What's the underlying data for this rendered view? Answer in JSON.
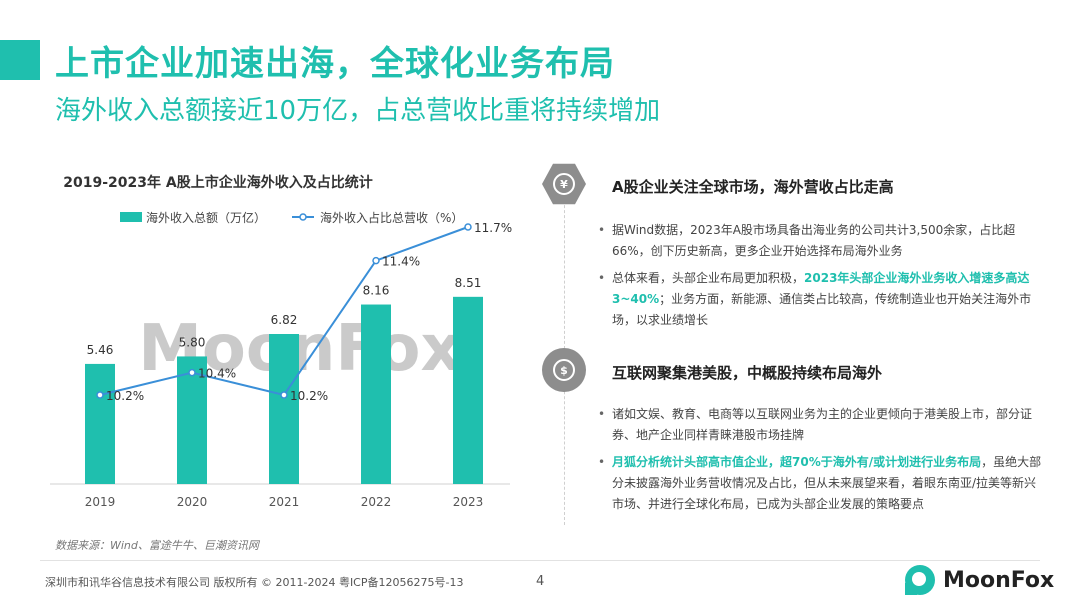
{
  "header": {
    "title": "上市企业加速出海，全球化业务布局",
    "subtitle": "海外收入总额接近10万亿，占总营收比重将持续增加"
  },
  "chart_data": {
    "type": "bar",
    "title": "2019-2023年 A股上市企业海外收入及占比统计",
    "categories": [
      "2019",
      "2020",
      "2021",
      "2022",
      "2023"
    ],
    "series": [
      {
        "name": "海外收入总额（万亿）",
        "type": "bar",
        "values": [
          5.46,
          5.8,
          6.82,
          8.16,
          8.51
        ],
        "labels": [
          "5.46",
          "5.80",
          "6.82",
          "8.16",
          "8.51"
        ]
      },
      {
        "name": "海外收入占比总营收（%）",
        "type": "line",
        "values": [
          10.2,
          10.4,
          10.2,
          11.4,
          11.7
        ],
        "labels": [
          "10.2%",
          "10.4%",
          "10.2%",
          "11.4%",
          "11.7%"
        ]
      }
    ],
    "legend_position": "top-left",
    "grid": false,
    "colors": {
      "bar": "#1fbfae",
      "line": "#3a8fd8"
    }
  },
  "watermark": "MoonFox",
  "source": "数据来源：Wind、富途牛牛、巨潮资讯网",
  "sections": [
    {
      "icon": "yen-icon",
      "icon_glyph": "¥",
      "heading": "A股企业关注全球市场，海外营收占比走高",
      "bullets": [
        {
          "text": "据Wind数据，2023年A股市场具备出海业务的公司共计3,500余家，占比超66%，创下历史新高，更多企业开始选择布局海外业务"
        },
        {
          "pre": "总体来看，头部企业布局更加积极，",
          "highlight": "2023年头部企业海外业务收入增速多高达3~40%",
          "post": "；业务方面，新能源、通信类占比较高，传统制造业也开始关注海外市场，以求业绩增长"
        }
      ]
    },
    {
      "icon": "stock-chart-icon",
      "icon_glyph": "$",
      "heading": "互联网聚集港美股，中概股持续布局海外",
      "bullets": [
        {
          "text": "诸如文娱、教育、电商等以互联网业务为主的企业更倾向于港美股上市，部分证券、地产企业同样青睐港股市场挂牌"
        },
        {
          "pre": "",
          "highlight": "月狐分析统计头部高市值企业，超70%于海外有/或计划进行业务布局",
          "post": "，虽绝大部分未披露海外业务营收情况及占比，但从未来展望来看，着眼东南亚/拉美等新兴市场、并进行全球化布局，已成为头部企业发展的策略要点"
        }
      ]
    }
  ],
  "footer": {
    "copyright": "深圳市和讯华谷信息技术有限公司 版权所有 © 2011-2024 粤ICP备12056275号-13",
    "page_number": "4",
    "logo_text": "MoonFox"
  }
}
